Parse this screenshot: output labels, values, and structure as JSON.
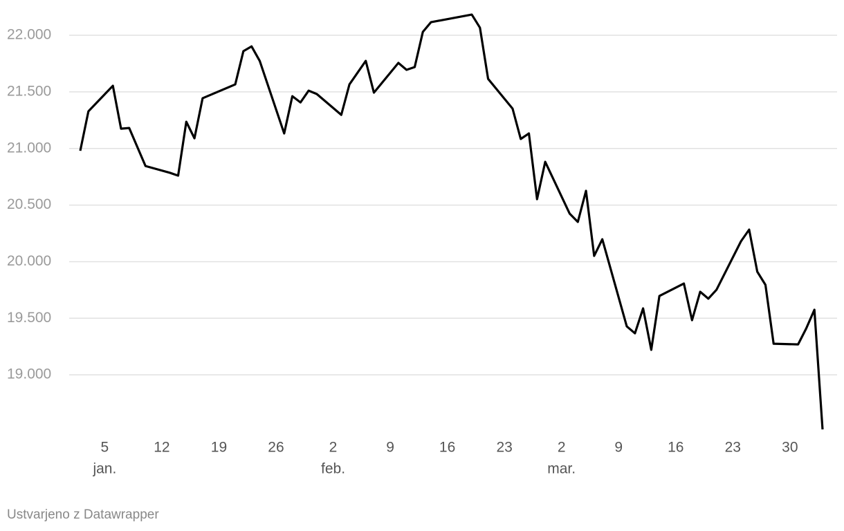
{
  "chart_data": {
    "type": "line",
    "x": [
      "01-02",
      "01-03",
      "01-06",
      "01-07",
      "01-08",
      "01-10",
      "01-13",
      "01-14",
      "01-15",
      "01-16",
      "01-17",
      "01-21",
      "01-22",
      "01-23",
      "01-24",
      "01-27",
      "01-28",
      "01-29",
      "01-30",
      "01-31",
      "02-03",
      "02-04",
      "02-05",
      "02-06",
      "02-07",
      "02-10",
      "02-11",
      "02-12",
      "02-13",
      "02-14",
      "02-19",
      "02-20",
      "02-21",
      "02-24",
      "02-25",
      "02-26",
      "02-27",
      "02-28",
      "03-03",
      "03-04",
      "03-05",
      "03-06",
      "03-07",
      "03-10",
      "03-11",
      "03-12",
      "03-13",
      "03-14",
      "03-17",
      "03-18",
      "03-19",
      "03-20",
      "03-21",
      "03-24",
      "03-25",
      "03-26",
      "03-27",
      "03-28",
      "03-31",
      "04-01",
      "04-02",
      "04-03"
    ],
    "series": [
      {
        "color": "#000000",
        "values": [
          20980,
          21328,
          21554,
          21175,
          21181,
          20845,
          20785,
          20760,
          21236,
          21090,
          21444,
          21566,
          21860,
          21902,
          21774,
          21133,
          21462,
          21407,
          21511,
          21481,
          21297,
          21566,
          21670,
          21774,
          21493,
          21756,
          21695,
          21719,
          22030,
          22116,
          22183,
          22067,
          21615,
          21352,
          21084,
          21133,
          20552,
          20882,
          20424,
          20351,
          20626,
          20051,
          20198,
          19428,
          19367,
          19587,
          19221,
          19697,
          19807,
          19483,
          19734,
          19673,
          19752,
          20180,
          20283,
          19911,
          19795,
          19275,
          19269,
          19410,
          19575,
          18518
        ]
      }
    ],
    "xlim": [
      "01-02",
      "04-03"
    ],
    "xticks": [
      {
        "value": "01-05",
        "label": "5"
      },
      {
        "value": "01-12",
        "label": "12"
      },
      {
        "value": "01-19",
        "label": "19"
      },
      {
        "value": "01-26",
        "label": "26"
      },
      {
        "value": "02-02",
        "label": "2"
      },
      {
        "value": "02-09",
        "label": "9"
      },
      {
        "value": "02-16",
        "label": "16"
      },
      {
        "value": "02-23",
        "label": "23"
      },
      {
        "value": "03-02",
        "label": "2"
      },
      {
        "value": "03-09",
        "label": "9"
      },
      {
        "value": "03-16",
        "label": "16"
      },
      {
        "value": "03-23",
        "label": "23"
      },
      {
        "value": "03-30",
        "label": "30"
      }
    ],
    "xtick_months": [
      {
        "value": "01-05",
        "label": "jan."
      },
      {
        "value": "02-02",
        "label": "feb."
      },
      {
        "value": "03-02",
        "label": "mar."
      }
    ],
    "ylim": [
      18500,
      22200
    ],
    "yticks": [
      {
        "value": 19000,
        "label": "19.000"
      },
      {
        "value": 19500,
        "label": "19.500"
      },
      {
        "value": 20000,
        "label": "20.000"
      },
      {
        "value": 20500,
        "label": "20.500"
      },
      {
        "value": 21000,
        "label": "21.000"
      },
      {
        "value": 21500,
        "label": "21.500"
      },
      {
        "value": 22000,
        "label": "22.000"
      }
    ],
    "grid": true,
    "footer": "Ustvarjeno z Datawrapper"
  }
}
